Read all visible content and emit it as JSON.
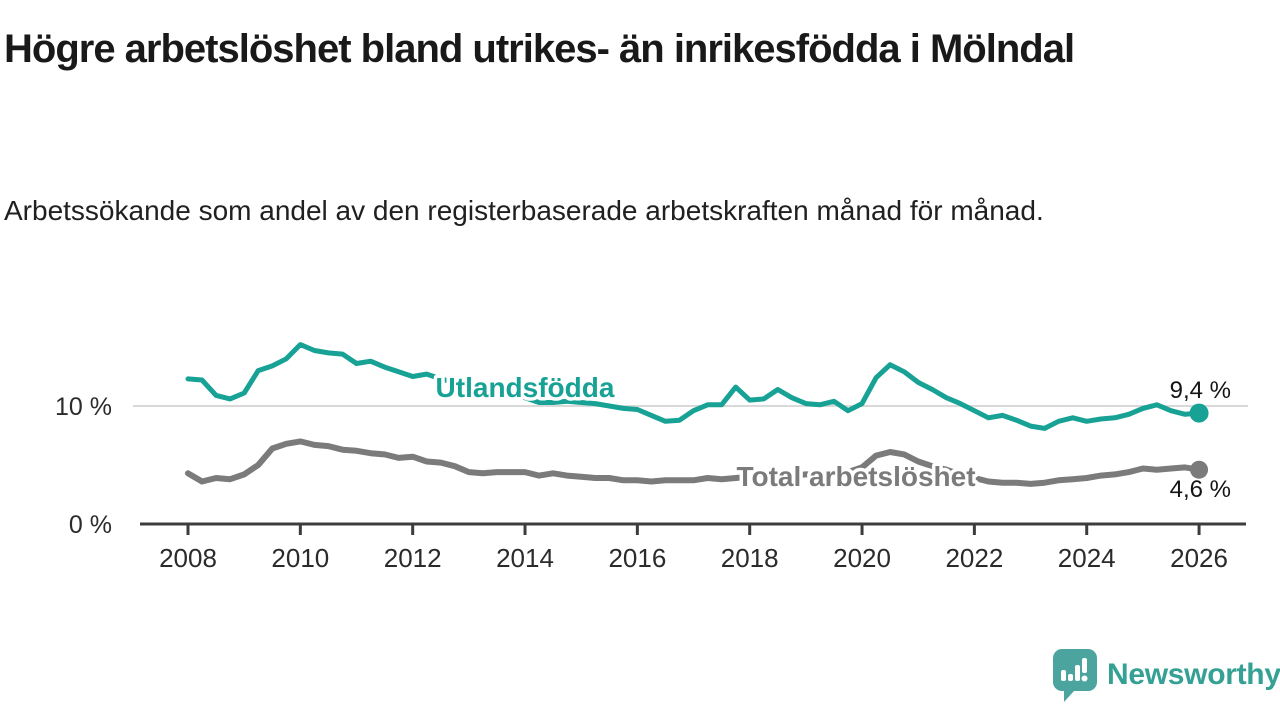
{
  "chart_data": {
    "type": "line",
    "title": "Högre arbetslöshet bland utrikes- än inrikesfödda i Mölndal",
    "subtitle": "Arbetssökande som andel av den registerbaserade arbetskraften månad för månad.",
    "unit": "%",
    "xlim": [
      2008,
      2026
    ],
    "ylim": [
      0,
      17
    ],
    "grid": "horizontal gridline at 10% only",
    "legend": "inline series labels on chart",
    "xticks": [
      2008,
      2010,
      2012,
      2014,
      2016,
      2018,
      2020,
      2022,
      2024,
      2026
    ],
    "yticks": [
      {
        "value": 10,
        "label": "10 %"
      },
      {
        "value": 0,
        "label": "0 %"
      }
    ],
    "x": [
      2008.0,
      2008.25,
      2008.5,
      2008.75,
      2009.0,
      2009.25,
      2009.5,
      2009.75,
      2010.0,
      2010.25,
      2010.5,
      2010.75,
      2011.0,
      2011.25,
      2011.5,
      2011.75,
      2012.0,
      2012.25,
      2012.5,
      2012.75,
      2013.0,
      2013.25,
      2013.5,
      2013.75,
      2014.0,
      2014.25,
      2014.5,
      2014.75,
      2015.0,
      2015.25,
      2015.5,
      2015.75,
      2016.0,
      2016.25,
      2016.5,
      2016.75,
      2017.0,
      2017.25,
      2017.5,
      2017.75,
      2018.0,
      2018.25,
      2018.5,
      2018.75,
      2019.0,
      2019.25,
      2019.5,
      2019.75,
      2020.0,
      2020.25,
      2020.5,
      2020.75,
      2021.0,
      2021.25,
      2021.5,
      2021.75,
      2022.0,
      2022.25,
      2022.5,
      2022.75,
      2023.0,
      2023.25,
      2023.5,
      2023.75,
      2024.0,
      2024.25,
      2024.5,
      2024.75,
      2025.0,
      2025.25,
      2025.5,
      2025.75,
      2026.0
    ],
    "series": [
      {
        "name": "Utlandsfödda",
        "color": "#17a295",
        "end_value": 9.4,
        "end_label": "9,4 %",
        "values": [
          12.3,
          12.2,
          10.9,
          10.6,
          11.1,
          13.0,
          13.4,
          14.0,
          15.2,
          14.7,
          14.5,
          14.4,
          13.6,
          13.8,
          13.3,
          12.9,
          12.5,
          12.7,
          12.3,
          12.0,
          11.8,
          11.6,
          11.3,
          11.0,
          10.7,
          10.3,
          10.3,
          10.4,
          10.3,
          10.2,
          10.0,
          9.8,
          9.7,
          9.2,
          8.7,
          8.8,
          9.6,
          10.1,
          10.1,
          11.6,
          10.5,
          10.6,
          11.4,
          10.7,
          10.2,
          10.1,
          10.4,
          9.6,
          10.2,
          12.4,
          13.5,
          12.9,
          12.0,
          11.4,
          10.7,
          10.2,
          9.6,
          9.0,
          9.2,
          8.8,
          8.3,
          8.1,
          8.7,
          9.0,
          8.7,
          8.9,
          9.0,
          9.3,
          9.8,
          10.1,
          9.6,
          9.3,
          9.4
        ]
      },
      {
        "name": "Total arbetslöshet",
        "color": "#7b7b7b",
        "end_value": 4.6,
        "end_label": "4,6 %",
        "values": [
          4.3,
          3.6,
          3.9,
          3.8,
          4.2,
          5.0,
          6.4,
          6.8,
          7.0,
          6.7,
          6.6,
          6.3,
          6.2,
          6.0,
          5.9,
          5.6,
          5.7,
          5.3,
          5.2,
          4.9,
          4.4,
          4.3,
          4.4,
          4.4,
          4.4,
          4.1,
          4.3,
          4.1,
          4.0,
          3.9,
          3.9,
          3.7,
          3.7,
          3.6,
          3.7,
          3.7,
          3.7,
          3.9,
          3.8,
          3.9,
          4.0,
          4.0,
          4.1,
          4.1,
          4.2,
          4.2,
          4.3,
          4.4,
          4.8,
          5.8,
          6.1,
          5.9,
          5.3,
          4.9,
          4.6,
          4.2,
          3.9,
          3.6,
          3.5,
          3.5,
          3.4,
          3.5,
          3.7,
          3.8,
          3.9,
          4.1,
          4.2,
          4.4,
          4.7,
          4.6,
          4.7,
          4.8,
          4.6
        ]
      }
    ],
    "colors": {
      "axis": "#3c3c3c",
      "gridline": "#d9d9d9",
      "text": "#191919"
    }
  },
  "footer": {
    "brand": "Newsworthy"
  }
}
